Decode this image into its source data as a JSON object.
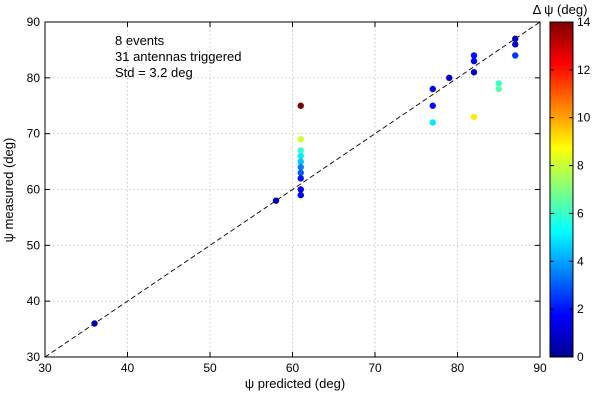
{
  "chart_data": {
    "type": "scatter",
    "xlabel": "ψ predicted (deg)",
    "ylabel": "ψ measured (deg)",
    "xlim": [
      30,
      90
    ],
    "ylim": [
      30,
      90
    ],
    "xticks": [
      30,
      40,
      50,
      60,
      70,
      80,
      90
    ],
    "yticks": [
      30,
      40,
      50,
      60,
      70,
      80,
      90
    ],
    "grid": true,
    "annotations": [
      "8 events",
      "31 antennas triggered",
      "Std = 3.2 deg"
    ],
    "reference_line": {
      "style": "dashed",
      "x": [
        30,
        90
      ],
      "y": [
        30,
        90
      ]
    },
    "colorbar": {
      "label": "Δ ψ (deg)",
      "range": [
        0,
        14
      ],
      "ticks": [
        0,
        2,
        4,
        6,
        8,
        10,
        12,
        14
      ],
      "colormap": "jet"
    },
    "points": [
      {
        "x": 36,
        "y": 36,
        "c": 0.5
      },
      {
        "x": 58,
        "y": 58,
        "c": 0.5
      },
      {
        "x": 61,
        "y": 75,
        "c": 14
      },
      {
        "x": 61,
        "y": 69,
        "c": 8
      },
      {
        "x": 61,
        "y": 67,
        "c": 6
      },
      {
        "x": 61,
        "y": 66,
        "c": 5
      },
      {
        "x": 61,
        "y": 65,
        "c": 4.5
      },
      {
        "x": 61,
        "y": 64,
        "c": 3.5
      },
      {
        "x": 61,
        "y": 63,
        "c": 3
      },
      {
        "x": 61,
        "y": 62,
        "c": 2
      },
      {
        "x": 61,
        "y": 60,
        "c": 1.5
      },
      {
        "x": 61,
        "y": 59,
        "c": 1.5
      },
      {
        "x": 77,
        "y": 78,
        "c": 1.5
      },
      {
        "x": 77,
        "y": 75,
        "c": 2
      },
      {
        "x": 77,
        "y": 72,
        "c": 5
      },
      {
        "x": 79,
        "y": 80,
        "c": 1
      },
      {
        "x": 82,
        "y": 84,
        "c": 2
      },
      {
        "x": 82,
        "y": 83,
        "c": 1.5
      },
      {
        "x": 82,
        "y": 81,
        "c": 1
      },
      {
        "x": 82,
        "y": 73,
        "c": 9
      },
      {
        "x": 85,
        "y": 79,
        "c": 6
      },
      {
        "x": 85,
        "y": 78,
        "c": 6.5
      },
      {
        "x": 87,
        "y": 87,
        "c": 0.5
      },
      {
        "x": 87,
        "y": 86,
        "c": 1
      },
      {
        "x": 87,
        "y": 84,
        "c": 2.5
      }
    ]
  }
}
